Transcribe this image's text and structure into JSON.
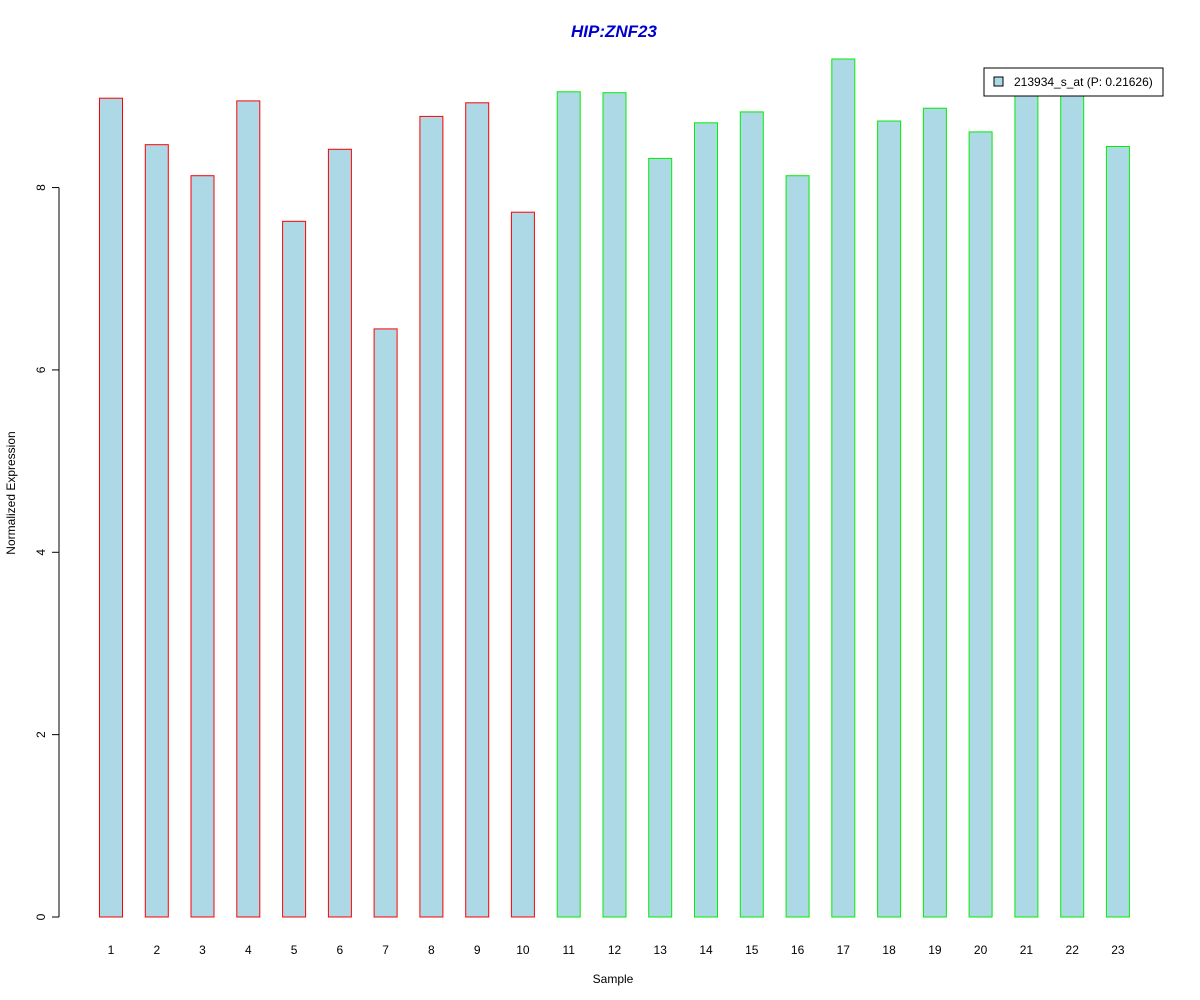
{
  "chart_data": {
    "type": "bar",
    "title": "HIP:ZNF23",
    "title_color": "#0000cc",
    "xlabel": "Sample",
    "ylabel": "Normalized Expression",
    "categories": [
      "1",
      "2",
      "3",
      "4",
      "5",
      "6",
      "7",
      "8",
      "9",
      "10",
      "11",
      "12",
      "13",
      "14",
      "15",
      "16",
      "17",
      "18",
      "19",
      "20",
      "21",
      "22",
      "23"
    ],
    "series": [
      {
        "name": "213934_s_at (P: 0.21626)",
        "values": [
          8.98,
          8.47,
          8.13,
          8.95,
          7.63,
          8.42,
          6.45,
          8.78,
          8.93,
          7.73,
          9.05,
          9.04,
          8.32,
          8.71,
          8.83,
          8.13,
          9.41,
          8.73,
          8.87,
          8.61,
          9.03,
          9.05,
          8.45
        ]
      }
    ],
    "bar_border_colors": [
      "#ff0000",
      "#ff0000",
      "#ff0000",
      "#ff0000",
      "#ff0000",
      "#ff0000",
      "#ff0000",
      "#ff0000",
      "#ff0000",
      "#ff0000",
      "#00ee00",
      "#00ee00",
      "#00ee00",
      "#00ee00",
      "#00ee00",
      "#00ee00",
      "#00ee00",
      "#00ee00",
      "#00ee00",
      "#00ee00",
      "#00ee00",
      "#00ee00",
      "#00ee00"
    ],
    "bar_fill_color": "#add8e6",
    "yticks": [
      0,
      2,
      4,
      6,
      8
    ],
    "ylim": [
      0,
      9.41
    ],
    "grid": false,
    "legend_position": "top-right"
  }
}
